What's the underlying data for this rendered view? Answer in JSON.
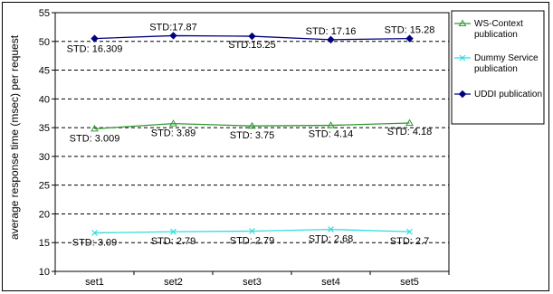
{
  "chart_data": {
    "type": "line",
    "title": "",
    "xlabel": "",
    "ylabel": "average response time (msec) per request",
    "categories": [
      "set1",
      "set2",
      "set3",
      "set4",
      "set5"
    ],
    "ylim": [
      10,
      55
    ],
    "yticks": [
      10,
      15,
      20,
      25,
      30,
      35,
      40,
      45,
      50,
      55
    ],
    "grid": "dashed horizontal",
    "legend_position": "right",
    "series": [
      {
        "name": "WS-Context publication",
        "color": "#339933",
        "marker": "triangle",
        "values": [
          34.8,
          35.7,
          35.3,
          35.4,
          35.8
        ],
        "std_labels": [
          "STD: 3.009",
          "STD: 3.89",
          "STD: 3.75",
          "STD: 4.14",
          "STD: 4.18"
        ]
      },
      {
        "name": "Dummy Service publication",
        "color": "#33dddd",
        "marker": "x",
        "values": [
          16.7,
          16.9,
          17.0,
          17.3,
          16.9
        ],
        "std_labels": [
          "STD: 3.09",
          "STD: 2.79",
          "STD: 2.79",
          "STD: 2.68",
          "STD: 2.7"
        ]
      },
      {
        "name": "UDDI publication",
        "color": "#000080",
        "marker": "diamond",
        "values": [
          50.5,
          51.0,
          50.9,
          50.3,
          50.5
        ],
        "std_labels": [
          "STD: 16.309",
          "STD:17.87",
          "STD:15.25",
          "STD: 17.16",
          "STD: 15.28"
        ]
      }
    ]
  }
}
